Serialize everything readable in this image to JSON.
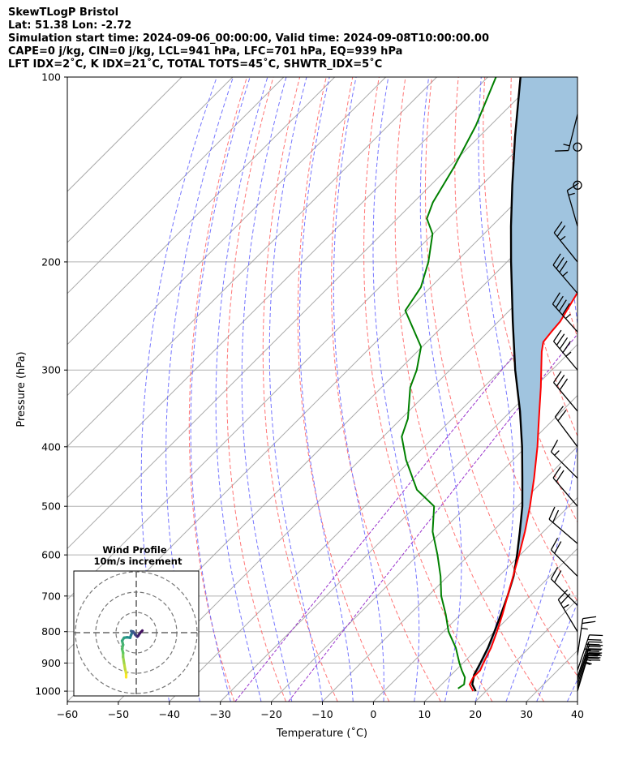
{
  "header": {
    "line1": "SkewTLogP Bristol",
    "line2": "Lat: 51.38   Lon: -2.72",
    "line3": "Simulation start time: 2024-09-06_00:00:00, Valid time: 2024-09-08T10:00:00.00",
    "line4": "CAPE=0 j/kg, CIN=0 j/kg, LCL=941 hPa, LFC=701 hPa, EQ=939 hPa",
    "line5": "LFT IDX=2˚C, K IDX=21˚C, TOTAL TOTS=45˚C, SHWTR_IDX=5˚C"
  },
  "colors": {
    "temperature": "#ff0000",
    "dewpoint": "#008000",
    "parcel": "#000000",
    "shade": "#a0c4df",
    "dry_adiabat": "#ff6666",
    "moist_adiabat": "#6666ff",
    "mixing_ratio": "#9933cc",
    "isotherm": "#aaaaaa",
    "grid": "#b0b0b0"
  },
  "chart_data": [
    {
      "type": "line",
      "name": "skew-t",
      "xlabel": "Temperature (˚C)",
      "ylabel": "Pressure (hPa)",
      "xlim": [
        -60,
        40
      ],
      "ylim": [
        1040,
        100
      ],
      "yscale": "log",
      "skew": 45,
      "grid": true,
      "x_ticks": [
        -60,
        -50,
        -40,
        -30,
        -20,
        -10,
        0,
        10,
        20,
        30,
        40
      ],
      "y_ticks": [
        1000,
        900,
        800,
        700,
        600,
        500,
        400,
        300,
        200,
        100
      ],
      "series": [
        {
          "role": "temperature",
          "points": [
            {
              "p": 1000,
              "t": 17.5
            },
            {
              "p": 975,
              "t": 15.5
            },
            {
              "p": 950,
              "t": 14.8
            },
            {
              "p": 925,
              "t": 14.8
            },
            {
              "p": 900,
              "t": 14.0
            },
            {
              "p": 850,
              "t": 12.5
            },
            {
              "p": 800,
              "t": 10.5
            },
            {
              "p": 750,
              "t": 8.2
            },
            {
              "p": 700,
              "t": 5.6
            },
            {
              "p": 650,
              "t": 2.8
            },
            {
              "p": 600,
              "t": -0.2
            },
            {
              "p": 550,
              "t": -3.6
            },
            {
              "p": 500,
              "t": -7.6
            },
            {
              "p": 450,
              "t": -12.3
            },
            {
              "p": 400,
              "t": -17.8
            },
            {
              "p": 375,
              "t": -21.0
            },
            {
              "p": 350,
              "t": -24.4
            },
            {
              "p": 320,
              "t": -28.8
            },
            {
              "p": 300,
              "t": -32.1
            },
            {
              "p": 280,
              "t": -35.6
            },
            {
              "p": 270,
              "t": -37.2
            },
            {
              "p": 260,
              "t": -37.6
            },
            {
              "p": 250,
              "t": -37.9
            },
            {
              "p": 225,
              "t": -40.1
            },
            {
              "p": 200,
              "t": -43.0
            },
            {
              "p": 175,
              "t": -47.2
            },
            {
              "p": 150,
              "t": -51.3
            },
            {
              "p": 135,
              "t": -55.0
            },
            {
              "p": 120,
              "t": -58.8
            },
            {
              "p": 110,
              "t": -61.6
            },
            {
              "p": 100,
              "t": -64.8
            }
          ]
        },
        {
          "role": "dewpoint",
          "points": [
            {
              "p": 990,
              "t": 14.0
            },
            {
              "p": 975,
              "t": 14.4
            },
            {
              "p": 950,
              "t": 13.2
            },
            {
              "p": 925,
              "t": 11.2
            },
            {
              "p": 900,
              "t": 9.3
            },
            {
              "p": 850,
              "t": 5.6
            },
            {
              "p": 800,
              "t": 1.0
            },
            {
              "p": 750,
              "t": -2.9
            },
            {
              "p": 700,
              "t": -7.4
            },
            {
              "p": 650,
              "t": -11.4
            },
            {
              "p": 600,
              "t": -16.2
            },
            {
              "p": 550,
              "t": -21.7
            },
            {
              "p": 500,
              "t": -26.4
            },
            {
              "p": 470,
              "t": -33.0
            },
            {
              "p": 420,
              "t": -41.0
            },
            {
              "p": 385,
              "t": -46.4
            },
            {
              "p": 360,
              "t": -48.7
            },
            {
              "p": 320,
              "t": -54.4
            },
            {
              "p": 300,
              "t": -56.5
            },
            {
              "p": 275,
              "t": -60.2
            },
            {
              "p": 240,
              "t": -70.4
            },
            {
              "p": 220,
              "t": -71.9
            },
            {
              "p": 200,
              "t": -75.4
            },
            {
              "p": 180,
              "t": -80.1
            },
            {
              "p": 170,
              "t": -84.2
            },
            {
              "p": 160,
              "t": -86.2
            },
            {
              "p": 140,
              "t": -89.0
            },
            {
              "p": 120,
              "t": -92.8
            },
            {
              "p": 100,
              "t": -98.4
            }
          ]
        },
        {
          "role": "parcel",
          "points": [
            {
              "p": 1000,
              "t": 18.0
            },
            {
              "p": 975,
              "t": 16.0
            },
            {
              "p": 941,
              "t": 14.5
            },
            {
              "p": 900,
              "t": 13.4
            },
            {
              "p": 850,
              "t": 11.9
            },
            {
              "p": 800,
              "t": 10.0
            },
            {
              "p": 750,
              "t": 7.9
            },
            {
              "p": 700,
              "t": 5.6
            },
            {
              "p": 650,
              "t": 2.9
            },
            {
              "p": 600,
              "t": -0.6
            },
            {
              "p": 550,
              "t": -4.6
            },
            {
              "p": 500,
              "t": -9.1
            },
            {
              "p": 450,
              "t": -14.6
            },
            {
              "p": 400,
              "t": -20.8
            },
            {
              "p": 350,
              "t": -28.2
            },
            {
              "p": 300,
              "t": -37.2
            },
            {
              "p": 250,
              "t": -47.2
            },
            {
              "p": 200,
              "t": -59.2
            },
            {
              "p": 175,
              "t": -66.2
            },
            {
              "p": 150,
              "t": -74.0
            },
            {
              "p": 125,
              "t": -83.0
            },
            {
              "p": 100,
              "t": -93.6
            }
          ]
        }
      ],
      "wind_barbs": [
        {
          "p": 1000,
          "u": -3,
          "v": 10
        },
        {
          "p": 990,
          "u": -4,
          "v": 13
        },
        {
          "p": 975,
          "u": -5,
          "v": 16
        },
        {
          "p": 960,
          "u": -6,
          "v": 18
        },
        {
          "p": 950,
          "u": -6,
          "v": 19
        },
        {
          "p": 925,
          "u": -6,
          "v": 18
        },
        {
          "p": 875,
          "u": -2,
          "v": 14
        },
        {
          "p": 800,
          "u": 6,
          "v": 10
        },
        {
          "p": 725,
          "u": 8,
          "v": 8
        },
        {
          "p": 650,
          "u": 7,
          "v": 7
        },
        {
          "p": 575,
          "u": 7,
          "v": 6
        },
        {
          "p": 500,
          "u": 6,
          "v": 7
        },
        {
          "p": 450,
          "u": 6,
          "v": 6
        },
        {
          "p": 400,
          "u": 6,
          "v": 8
        },
        {
          "p": 350,
          "u": 10,
          "v": 12
        },
        {
          "p": 300,
          "u": 15,
          "v": 18
        },
        {
          "p": 260,
          "u": 16,
          "v": 18
        },
        {
          "p": 225,
          "u": 12,
          "v": 14
        },
        {
          "p": 200,
          "u": 8,
          "v": 10
        },
        {
          "p": 175,
          "u": 2,
          "v": 7
        },
        {
          "p": 150,
          "u": 0,
          "v": 0
        },
        {
          "p": 130,
          "u": 0,
          "v": 0
        },
        {
          "p": 115,
          "u": 2,
          "v": -8
        }
      ]
    },
    {
      "type": "scatter",
      "name": "hodograph",
      "title": "Wind Profile",
      "subtitle": "10m/s increment",
      "ring_increment": 10,
      "rings": 3,
      "series": [
        {
          "role": "hodo-trace",
          "points": [
            {
              "u": -5,
              "v": -22
            },
            {
              "u": -5,
              "v": -20
            },
            {
              "u": -5.5,
              "v": -18
            },
            {
              "u": -6,
              "v": -15
            },
            {
              "u": -6.5,
              "v": -12
            },
            {
              "u": -6.5,
              "v": -10
            },
            {
              "u": -7,
              "v": -8
            },
            {
              "u": -6.5,
              "v": -6
            },
            {
              "u": -7,
              "v": -4
            },
            {
              "u": -6,
              "v": -2.5
            },
            {
              "u": -4.5,
              "v": -2.3
            },
            {
              "u": -3,
              "v": -2.5
            },
            {
              "u": -2.5,
              "v": -1
            },
            {
              "u": -2,
              "v": 0
            },
            {
              "u": -2.5,
              "v": 0.8
            },
            {
              "u": -1.5,
              "v": 0.5
            },
            {
              "u": -0.5,
              "v": -1
            },
            {
              "u": 0.5,
              "v": -2
            },
            {
              "u": 1,
              "v": -1.5
            },
            {
              "u": 2,
              "v": 0
            },
            {
              "u": 3,
              "v": 1
            }
          ]
        }
      ]
    }
  ]
}
